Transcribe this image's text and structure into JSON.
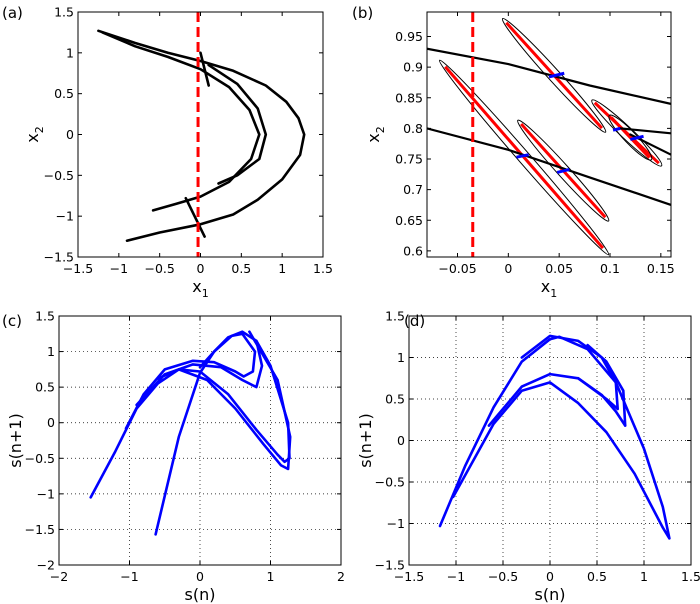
{
  "chart_data": [
    {
      "panel_label": "(a)",
      "type": "line",
      "xlabel": "x",
      "xlabel_sub": "1",
      "ylabel": "x",
      "ylabel_sub": "2",
      "xlim": [
        -1.5,
        1.5
      ],
      "ylim": [
        -1.5,
        1.5
      ],
      "xticks": [
        "-1.5",
        "-1",
        "-0.5",
        "0",
        "0.5",
        "1",
        "1.5"
      ],
      "xtick_values": [
        -1.5,
        -1,
        -0.5,
        0,
        0.5,
        1,
        1.5
      ],
      "yticks": [
        "-1.5",
        "-1",
        "-0.5",
        "0",
        "0.5",
        "1",
        "1.5"
      ],
      "ytick_values": [
        -1.5,
        -1,
        -0.5,
        0,
        0.5,
        1,
        1.5
      ],
      "grid": false,
      "vline": {
        "x": -0.03,
        "color": "#ff0000",
        "style": "dashed"
      },
      "series": [
        {
          "color": "#000000",
          "points": [
            [
              -1.25,
              1.27
            ],
            [
              -0.8,
              1.12
            ],
            [
              -0.4,
              1.0
            ],
            [
              0,
              0.9
            ],
            [
              0.4,
              0.78
            ],
            [
              0.8,
              0.6
            ],
            [
              1.05,
              0.4
            ],
            [
              1.2,
              0.2
            ],
            [
              1.27,
              0
            ],
            [
              1.22,
              -0.25
            ],
            [
              1.0,
              -0.55
            ],
            [
              0.7,
              -0.8
            ],
            [
              0.4,
              -0.98
            ],
            [
              0,
              -1.1
            ],
            [
              -0.5,
              -1.2
            ],
            [
              -0.9,
              -1.3
            ]
          ]
        },
        {
          "color": "#000000",
          "points": [
            [
              -1.2,
              1.25
            ],
            [
              -0.8,
              1.08
            ],
            [
              -0.4,
              0.95
            ],
            [
              0,
              0.8
            ],
            [
              0.35,
              0.58
            ],
            [
              0.6,
              0.3
            ],
            [
              0.72,
              0
            ],
            [
              0.62,
              -0.3
            ],
            [
              0.35,
              -0.58
            ],
            [
              0,
              -0.76
            ],
            [
              -0.3,
              -0.85
            ],
            [
              -0.58,
              -0.93
            ]
          ]
        },
        {
          "color": "#000000",
          "points": [
            [
              0.1,
              0.85
            ],
            [
              0.45,
              0.62
            ],
            [
              0.7,
              0.32
            ],
            [
              0.8,
              0
            ],
            [
              0.72,
              -0.3
            ],
            [
              0.45,
              -0.5
            ],
            [
              0.22,
              -0.6
            ]
          ]
        },
        {
          "color": "#000000",
          "points": [
            [
              -0.18,
              -0.78
            ],
            [
              0.05,
              -1.25
            ]
          ]
        },
        {
          "color": "#000000",
          "points": [
            [
              0,
              1.0
            ],
            [
              0.1,
              0.6
            ]
          ]
        }
      ]
    },
    {
      "panel_label": "(b)",
      "type": "line",
      "xlabel": "x",
      "xlabel_sub": "1",
      "ylabel": "x",
      "ylabel_sub": "2",
      "xlim": [
        -0.08,
        0.16
      ],
      "ylim": [
        0.59,
        0.99
      ],
      "xticks": [
        "-0.05",
        "0",
        "0.05",
        "0.1",
        "0.15"
      ],
      "xtick_values": [
        -0.05,
        0,
        0.05,
        0.1,
        0.15
      ],
      "yticks": [
        "0.6",
        "0.65",
        "0.7",
        "0.75",
        "0.8",
        "0.85",
        "0.9",
        "0.95"
      ],
      "ytick_values": [
        0.6,
        0.65,
        0.7,
        0.75,
        0.8,
        0.85,
        0.9,
        0.95
      ],
      "grid": false,
      "vline": {
        "x": -0.035,
        "color": "#ff0000",
        "style": "dashed"
      },
      "series": [
        {
          "color": "#000000",
          "points": [
            [
              -0.08,
              0.93
            ],
            [
              0.0,
              0.905
            ],
            [
              0.08,
              0.87
            ],
            [
              0.16,
              0.84
            ]
          ]
        },
        {
          "color": "#000000",
          "points": [
            [
              -0.08,
              0.8
            ],
            [
              0.0,
              0.765
            ],
            [
              0.08,
              0.72
            ],
            [
              0.16,
              0.675
            ]
          ]
        },
        {
          "color": "#000000",
          "points": [
            [
              0.11,
              0.8
            ],
            [
              0.16,
              0.792
            ]
          ]
        },
        {
          "color": "#000000",
          "points": [
            [
              0.12,
              0.79
            ],
            [
              0.16,
              0.757
            ]
          ]
        }
      ],
      "ellipses": [
        {
          "from": [
            -0.067,
            0.91
          ],
          "to": [
            0.098,
            0.595
          ]
        },
        {
          "from": [
            -0.005,
            0.978
          ],
          "to": [
            0.095,
            0.795
          ]
        },
        {
          "from": [
            0.01,
            0.812
          ],
          "to": [
            0.098,
            0.65
          ]
        },
        {
          "from": [
            0.083,
            0.845
          ],
          "to": [
            0.15,
            0.74
          ]
        },
        {
          "from": [
            0.1,
            0.82
          ],
          "to": [
            0.14,
            0.75
          ]
        }
      ],
      "ellipse_color": "#000000",
      "axis_color": "#ff0000",
      "blue_segments": [
        [
          [
            0.04,
            0.884
          ],
          [
            0.055,
            0.89
          ]
        ],
        [
          [
            0.008,
            0.753
          ],
          [
            0.02,
            0.757
          ]
        ],
        [
          [
            0.048,
            0.728
          ],
          [
            0.06,
            0.733
          ]
        ],
        [
          [
            0.103,
            0.797
          ],
          [
            0.11,
            0.8
          ]
        ],
        [
          [
            0.12,
            0.782
          ],
          [
            0.133,
            0.787
          ]
        ]
      ],
      "blue_color": "#0000ff"
    },
    {
      "panel_label": "(c)",
      "type": "line",
      "xlabel": "s(n)",
      "ylabel": "s(n+1)",
      "xlim": [
        -2,
        2
      ],
      "ylim": [
        -2,
        1.5
      ],
      "xticks": [
        "-2",
        "-1",
        "0",
        "1",
        "2"
      ],
      "xtick_values": [
        -2,
        -1,
        0,
        1,
        2
      ],
      "yticks": [
        "-2",
        "-1.5",
        "-1",
        "-0.5",
        "0",
        "0.5",
        "1",
        "1.5"
      ],
      "ytick_values": [
        -2,
        -1.5,
        -1,
        -0.5,
        0,
        0.5,
        1,
        1.5
      ],
      "grid": true,
      "series": [
        {
          "color": "#0000ff",
          "points": [
            [
              -1.55,
              -1.05
            ],
            [
              -1.2,
              -0.4
            ],
            [
              -0.9,
              0.2
            ],
            [
              -0.6,
              0.55
            ],
            [
              -0.3,
              0.75
            ],
            [
              0,
              0.72
            ],
            [
              0.4,
              0.4
            ],
            [
              0.8,
              -0.1
            ],
            [
              1.1,
              -0.45
            ],
            [
              1.2,
              -0.55
            ],
            [
              1.27,
              -0.5
            ],
            [
              1.25,
              0
            ],
            [
              1.0,
              0.8
            ],
            [
              0.8,
              1.15
            ],
            [
              0.6,
              1.28
            ],
            [
              0.4,
              1.2
            ],
            [
              0.2,
              1.0
            ],
            [
              0,
              0.7
            ],
            [
              -0.3,
              -0.2
            ],
            [
              -0.63,
              -1.57
            ]
          ]
        },
        {
          "color": "#0000ff",
          "points": [
            [
              -1.05,
              -0.08
            ],
            [
              -0.8,
              0.4
            ],
            [
              -0.5,
              0.75
            ],
            [
              -0.1,
              0.87
            ],
            [
              0.2,
              0.85
            ],
            [
              0.5,
              0.72
            ],
            [
              0.62,
              0.65
            ],
            [
              0.75,
              0.72
            ],
            [
              0.78,
              1.0
            ],
            [
              0.6,
              1.25
            ],
            [
              0.45,
              1.22
            ],
            [
              0.2,
              1.0
            ],
            [
              0,
              0.78
            ]
          ]
        },
        {
          "color": "#0000ff",
          "points": [
            [
              -0.9,
              0.25
            ],
            [
              -0.5,
              0.68
            ],
            [
              -0.1,
              0.82
            ],
            [
              0.3,
              0.78
            ],
            [
              0.6,
              0.6
            ],
            [
              0.8,
              0.5
            ],
            [
              0.88,
              0.8
            ],
            [
              0.8,
              1.15
            ]
          ]
        },
        {
          "color": "#0000ff",
          "points": [
            [
              0.7,
              1.28
            ],
            [
              1.1,
              0.6
            ],
            [
              1.28,
              -0.2
            ],
            [
              1.25,
              -0.65
            ],
            [
              1.15,
              -0.6
            ],
            [
              0.9,
              -0.3
            ],
            [
              0.5,
              0.2
            ],
            [
              0.1,
              0.6
            ],
            [
              -0.3,
              0.75
            ],
            [
              -0.6,
              0.62
            ]
          ]
        }
      ]
    },
    {
      "panel_label": "(d)",
      "type": "line",
      "xlabel": "s(n)",
      "ylabel": "s(n+1)",
      "xlim": [
        -1.5,
        1.5
      ],
      "ylim": [
        -1.5,
        1.5
      ],
      "xticks": [
        "-1.5",
        "-1",
        "-0.5",
        "0",
        "0.5",
        "1",
        "1.5"
      ],
      "xtick_values": [
        -1.5,
        -1,
        -0.5,
        0,
        0.5,
        1,
        1.5
      ],
      "yticks": [
        "-1.5",
        "-1",
        "-0.5",
        "0",
        "0.5",
        "1",
        "1.5"
      ],
      "ytick_values": [
        -1.5,
        -1,
        -0.5,
        0,
        0.5,
        1,
        1.5
      ],
      "grid": true,
      "series": [
        {
          "color": "#0000ff",
          "points": [
            [
              -1.17,
              -1.03
            ],
            [
              -0.9,
              -0.3
            ],
            [
              -0.6,
              0.4
            ],
            [
              -0.3,
              0.95
            ],
            [
              0,
              1.22
            ],
            [
              0.1,
              1.25
            ],
            [
              0.4,
              1.1
            ],
            [
              0.7,
              0.7
            ],
            [
              1.0,
              -0.1
            ],
            [
              1.2,
              -0.8
            ],
            [
              1.27,
              -1.18
            ],
            [
              1.2,
              -1.05
            ],
            [
              0.9,
              -0.4
            ],
            [
              0.6,
              0.1
            ],
            [
              0.3,
              0.45
            ],
            [
              0,
              0.7
            ],
            [
              -0.3,
              0.6
            ],
            [
              -0.6,
              0.2
            ],
            [
              -1.03,
              -0.68
            ]
          ]
        },
        {
          "color": "#0000ff",
          "points": [
            [
              -0.65,
              0.18
            ],
            [
              -0.3,
              0.65
            ],
            [
              0,
              0.8
            ],
            [
              0.3,
              0.75
            ],
            [
              0.6,
              0.5
            ],
            [
              0.72,
              0.38
            ],
            [
              0.7,
              0.7
            ],
            [
              0.55,
              1.0
            ],
            [
              0.3,
              1.2
            ],
            [
              0,
              1.26
            ],
            [
              -0.3,
              1.0
            ]
          ]
        },
        {
          "color": "#0000ff",
          "points": [
            [
              0.8,
              0.18
            ],
            [
              0.7,
              0.35
            ],
            [
              0.55,
              0.55
            ],
            [
              0.3,
              0.75
            ]
          ]
        },
        {
          "color": "#0000ff",
          "points": [
            [
              0.8,
              0.18
            ],
            [
              0.78,
              0.6
            ],
            [
              0.6,
              0.95
            ],
            [
              0.4,
              1.15
            ]
          ]
        }
      ]
    }
  ]
}
